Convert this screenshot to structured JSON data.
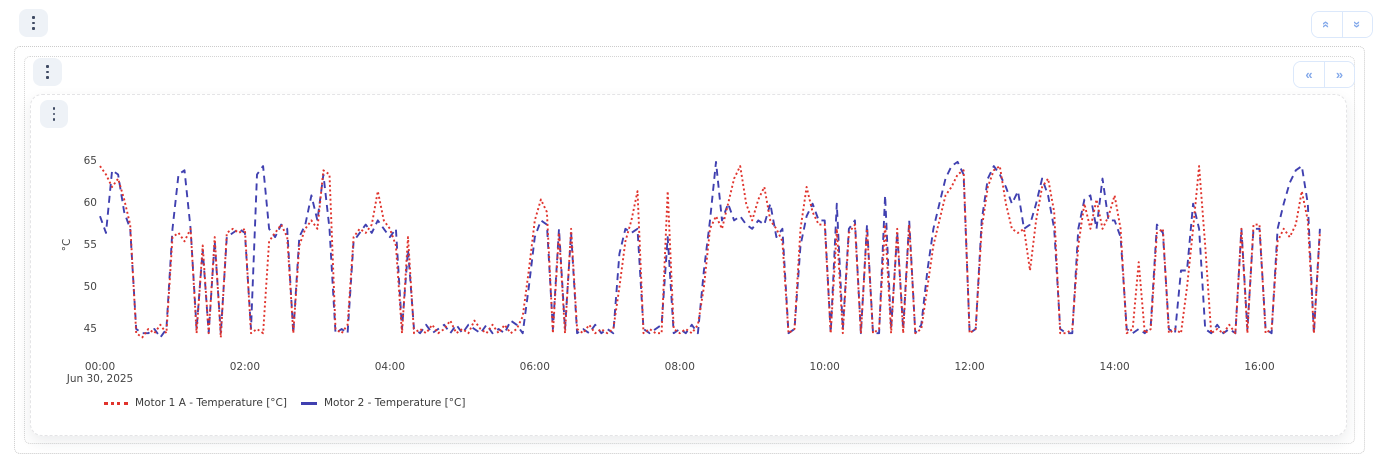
{
  "colors": {
    "accent_blue": "#84a9ea",
    "button_bg": "#eef2f7",
    "kebab_dot": "#3e4a63",
    "series_red": "#e0332c",
    "series_blue": "#4040b0",
    "tick_text": "#454545"
  },
  "icons": {
    "prev": "«",
    "next": "»",
    "collapse": "«",
    "expand": "»"
  },
  "chart_data": {
    "type": "line",
    "title": "",
    "ylabel": "°C",
    "xlabel": "Jun 30, 2025",
    "x_unit": "hours",
    "x_range": [
      0,
      16.83
    ],
    "ylim": [
      43.5,
      66
    ],
    "grid": false,
    "legend_position": "bottom-left",
    "y_ticks": [
      45,
      50,
      55,
      60,
      65
    ],
    "x_ticks": [
      {
        "hour": 0,
        "label": "00:00",
        "sublabel": "Jun 30, 2025"
      },
      {
        "hour": 2,
        "label": "02:00",
        "sublabel": ""
      },
      {
        "hour": 4,
        "label": "04:00",
        "sublabel": ""
      },
      {
        "hour": 6,
        "label": "06:00",
        "sublabel": ""
      },
      {
        "hour": 8,
        "label": "08:00",
        "sublabel": ""
      },
      {
        "hour": 10,
        "label": "10:00",
        "sublabel": ""
      },
      {
        "hour": 12,
        "label": "12:00",
        "sublabel": ""
      },
      {
        "hour": 14,
        "label": "14:00",
        "sublabel": ""
      },
      {
        "hour": 16,
        "label": "16:00",
        "sublabel": ""
      }
    ],
    "sample_interval_minutes": 5,
    "series": [
      {
        "name": "Motor 1 A - Temperature [°C]",
        "color": "#e0332c",
        "style": "dotted",
        "values": [
          64.5,
          63.5,
          62,
          63,
          60.5,
          57.5,
          44.5,
          44,
          45,
          44.5,
          45.5,
          44.5,
          56,
          56.5,
          55.5,
          57,
          44.5,
          55,
          44.5,
          56,
          44,
          56.5,
          57,
          56.5,
          57,
          44.5,
          45,
          44.5,
          55.5,
          56.5,
          57.5,
          56,
          44.5,
          55,
          57,
          58,
          57,
          64,
          63.5,
          45,
          44.5,
          45.5,
          56,
          57,
          56.5,
          57.5,
          61.5,
          58,
          57,
          55,
          44.5,
          56,
          44.5,
          45,
          44.5,
          45.5,
          44.5,
          45,
          46,
          44.5,
          45,
          44.5,
          46,
          45,
          44.5,
          45.5,
          44.5,
          45.5,
          44.5,
          45,
          46.5,
          52,
          58,
          60.5,
          59,
          44.5,
          56.5,
          44.5,
          57,
          45,
          44.5,
          45.5,
          44.5,
          45,
          44.5,
          45,
          50,
          55.5,
          58,
          61.5,
          44.5,
          45,
          44.5,
          44.5,
          61.5,
          45,
          44.5,
          45,
          44.5,
          45.5,
          50,
          57,
          58.5,
          57,
          60,
          63,
          64.5,
          60,
          58,
          60.5,
          62,
          58,
          57,
          55.5,
          44.5,
          45,
          57,
          62,
          59,
          57.5,
          57.5,
          44.5,
          57,
          44.5,
          56.5,
          57.5,
          44.5,
          57,
          44.5,
          45,
          57.5,
          44.5,
          57,
          44.5,
          57.5,
          44.5,
          45,
          50,
          55,
          58,
          61,
          62,
          63.5,
          64,
          44.5,
          45,
          57,
          62,
          64,
          64.5,
          60,
          57,
          56.5,
          57,
          52,
          58,
          62,
          63,
          59,
          44.5,
          44.5,
          45,
          55,
          60,
          57,
          60.5,
          57,
          58.5,
          61,
          57,
          44.5,
          45,
          53,
          44.5,
          45,
          56.5,
          57,
          44.5,
          45,
          44.5,
          50,
          57,
          64.5,
          55,
          44.5,
          45,
          44.5,
          45.5,
          44.5,
          57,
          44.5,
          57.5,
          57.5,
          44.5,
          45,
          55.5,
          57,
          56,
          57.5,
          61.5,
          58,
          44.5,
          56.5
        ]
      },
      {
        "name": "Motor 2 - Temperature [°C]",
        "color": "#4040b0",
        "style": "dashed",
        "values": [
          58.5,
          56.5,
          64,
          63.5,
          59,
          57,
          45,
          44.5,
          44.5,
          45,
          44,
          45,
          57,
          63.5,
          64,
          57,
          45,
          54.5,
          44.5,
          55.5,
          44.5,
          56,
          56.5,
          57,
          56.5,
          45,
          63.5,
          64.5,
          57,
          56,
          57.5,
          57,
          44.5,
          56,
          57.5,
          61,
          58,
          63.5,
          57,
          44.5,
          45,
          44.5,
          55.5,
          56.5,
          57.5,
          56.5,
          58,
          57,
          56,
          57,
          45,
          54.5,
          45,
          44.5,
          45.5,
          44.5,
          45,
          45.5,
          44.5,
          45.5,
          44.5,
          45.5,
          45,
          44.5,
          45.5,
          44.5,
          45,
          44.5,
          46,
          45.5,
          44.5,
          50,
          56,
          58,
          57.5,
          45,
          57,
          45,
          56.5,
          44.5,
          45,
          44.5,
          45.5,
          44.5,
          45,
          44.5,
          54,
          57,
          56.5,
          57,
          45,
          44.5,
          45,
          45.5,
          56,
          44.5,
          45,
          44.5,
          45.5,
          44.5,
          52,
          58,
          65,
          58,
          60,
          58,
          58.5,
          57.5,
          57,
          58,
          57.5,
          60,
          56,
          57,
          44.5,
          45,
          55,
          58.5,
          60,
          58,
          58,
          44.5,
          60,
          45,
          57,
          58,
          44.5,
          57.5,
          44.5,
          44.5,
          61,
          45,
          56.5,
          45,
          58,
          44.5,
          45.5,
          52,
          57,
          60,
          63,
          64.5,
          65,
          63.5,
          44.5,
          45,
          58,
          63,
          64.5,
          63.5,
          62,
          60,
          61.5,
          57,
          57.5,
          60,
          63,
          61,
          57,
          45,
          44.5,
          44.5,
          57,
          60.5,
          61,
          57,
          63,
          58,
          58,
          56,
          45,
          44.5,
          45,
          44.5,
          45.5,
          57.5,
          56.5,
          45,
          44.5,
          52,
          52,
          60,
          57,
          45,
          44.5,
          45.5,
          44.5,
          45,
          44.5,
          57,
          45,
          57,
          57,
          45,
          44.5,
          57,
          60,
          62.5,
          64,
          64.5,
          60,
          44.5,
          57
        ]
      }
    ]
  }
}
